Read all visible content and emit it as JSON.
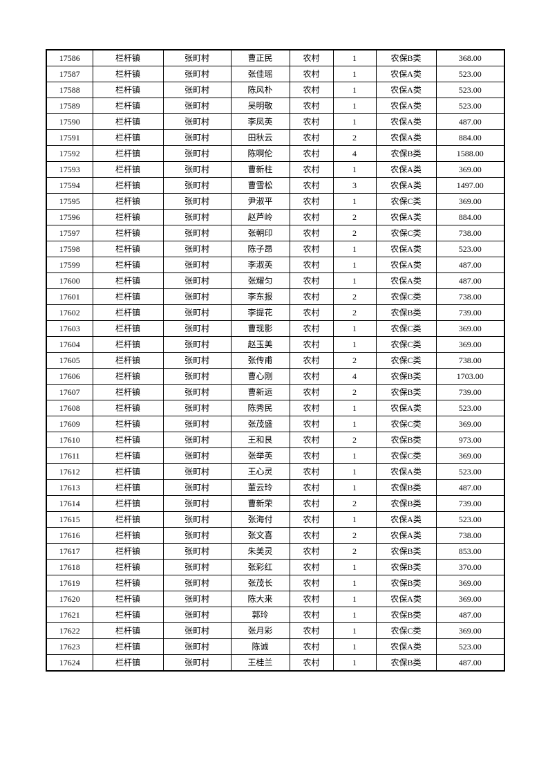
{
  "page": {
    "kind": "insurance-roster-table-page",
    "background_color": "#ffffff",
    "border_color": "#000000",
    "text_color": "#000000"
  },
  "table": {
    "field_names": [
      "serial_number",
      "town",
      "village",
      "name",
      "residence_type",
      "person_count",
      "insurance_category",
      "amount"
    ],
    "rows": [
      [
        "17586",
        "栏杆镇",
        "张町村",
        "曹正民",
        "农村",
        "1",
        "农保B类",
        "368.00"
      ],
      [
        "17587",
        "栏杆镇",
        "张町村",
        "张佳瑶",
        "农村",
        "1",
        "农保A类",
        "523.00"
      ],
      [
        "17588",
        "栏杆镇",
        "张町村",
        "陈风朴",
        "农村",
        "1",
        "农保A类",
        "523.00"
      ],
      [
        "17589",
        "栏杆镇",
        "张町村",
        "吴明敬",
        "农村",
        "1",
        "农保A类",
        "523.00"
      ],
      [
        "17590",
        "栏杆镇",
        "张町村",
        "李凤英",
        "农村",
        "1",
        "农保A类",
        "487.00"
      ],
      [
        "17591",
        "栏杆镇",
        "张町村",
        "田秋云",
        "农村",
        "2",
        "农保A类",
        "884.00"
      ],
      [
        "17592",
        "栏杆镇",
        "张町村",
        "陈啊伦",
        "农村",
        "4",
        "农保B类",
        "1588.00"
      ],
      [
        "17593",
        "栏杆镇",
        "张町村",
        "曹新柱",
        "农村",
        "1",
        "农保A类",
        "369.00"
      ],
      [
        "17594",
        "栏杆镇",
        "张町村",
        "曹雪松",
        "农村",
        "3",
        "农保A类",
        "1497.00"
      ],
      [
        "17595",
        "栏杆镇",
        "张町村",
        "尹淑平",
        "农村",
        "1",
        "农保C类",
        "369.00"
      ],
      [
        "17596",
        "栏杆镇",
        "张町村",
        "赵芦岭",
        "农村",
        "2",
        "农保A类",
        "884.00"
      ],
      [
        "17597",
        "栏杆镇",
        "张町村",
        "张朝印",
        "农村",
        "2",
        "农保C类",
        "738.00"
      ],
      [
        "17598",
        "栏杆镇",
        "张町村",
        "陈子昂",
        "农村",
        "1",
        "农保A类",
        "523.00"
      ],
      [
        "17599",
        "栏杆镇",
        "张町村",
        "李淑英",
        "农村",
        "1",
        "农保A类",
        "487.00"
      ],
      [
        "17600",
        "栏杆镇",
        "张町村",
        "张耀匀",
        "农村",
        "1",
        "农保A类",
        "487.00"
      ],
      [
        "17601",
        "栏杆镇",
        "张町村",
        "李东报",
        "农村",
        "2",
        "农保C类",
        "738.00"
      ],
      [
        "17602",
        "栏杆镇",
        "张町村",
        "李提花",
        "农村",
        "2",
        "农保B类",
        "739.00"
      ],
      [
        "17603",
        "栏杆镇",
        "张町村",
        "曹现影",
        "农村",
        "1",
        "农保C类",
        "369.00"
      ],
      [
        "17604",
        "栏杆镇",
        "张町村",
        "赵玉美",
        "农村",
        "1",
        "农保C类",
        "369.00"
      ],
      [
        "17605",
        "栏杆镇",
        "张町村",
        "张传甫",
        "农村",
        "2",
        "农保C类",
        "738.00"
      ],
      [
        "17606",
        "栏杆镇",
        "张町村",
        "曹心刚",
        "农村",
        "4",
        "农保B类",
        "1703.00"
      ],
      [
        "17607",
        "栏杆镇",
        "张町村",
        "曹新运",
        "农村",
        "2",
        "农保B类",
        "739.00"
      ],
      [
        "17608",
        "栏杆镇",
        "张町村",
        "陈秀民",
        "农村",
        "1",
        "农保A类",
        "523.00"
      ],
      [
        "17609",
        "栏杆镇",
        "张町村",
        "张茂盛",
        "农村",
        "1",
        "农保C类",
        "369.00"
      ],
      [
        "17610",
        "栏杆镇",
        "张町村",
        "王和艮",
        "农村",
        "2",
        "农保B类",
        "973.00"
      ],
      [
        "17611",
        "栏杆镇",
        "张町村",
        "张举英",
        "农村",
        "1",
        "农保C类",
        "369.00"
      ],
      [
        "17612",
        "栏杆镇",
        "张町村",
        "王心灵",
        "农村",
        "1",
        "农保A类",
        "523.00"
      ],
      [
        "17613",
        "栏杆镇",
        "张町村",
        "董云玲",
        "农村",
        "1",
        "农保B类",
        "487.00"
      ],
      [
        "17614",
        "栏杆镇",
        "张町村",
        "曹新荣",
        "农村",
        "2",
        "农保B类",
        "739.00"
      ],
      [
        "17615",
        "栏杆镇",
        "张町村",
        "张海付",
        "农村",
        "1",
        "农保A类",
        "523.00"
      ],
      [
        "17616",
        "栏杆镇",
        "张町村",
        "张文喜",
        "农村",
        "2",
        "农保A类",
        "738.00"
      ],
      [
        "17617",
        "栏杆镇",
        "张町村",
        "朱美灵",
        "农村",
        "2",
        "农保B类",
        "853.00"
      ],
      [
        "17618",
        "栏杆镇",
        "张町村",
        "张彩红",
        "农村",
        "1",
        "农保B类",
        "370.00"
      ],
      [
        "17619",
        "栏杆镇",
        "张町村",
        "张茂长",
        "农村",
        "1",
        "农保B类",
        "369.00"
      ],
      [
        "17620",
        "栏杆镇",
        "张町村",
        "陈大来",
        "农村",
        "1",
        "农保A类",
        "369.00"
      ],
      [
        "17621",
        "栏杆镇",
        "张町村",
        "郭玲",
        "农村",
        "1",
        "农保B类",
        "487.00"
      ],
      [
        "17622",
        "栏杆镇",
        "张町村",
        "张月彩",
        "农村",
        "1",
        "农保C类",
        "369.00"
      ],
      [
        "17623",
        "栏杆镇",
        "张町村",
        "陈诚",
        "农村",
        "1",
        "农保A类",
        "523.00"
      ],
      [
        "17624",
        "栏杆镇",
        "张町村",
        "王桂兰",
        "农村",
        "1",
        "农保B类",
        "487.00"
      ]
    ]
  }
}
